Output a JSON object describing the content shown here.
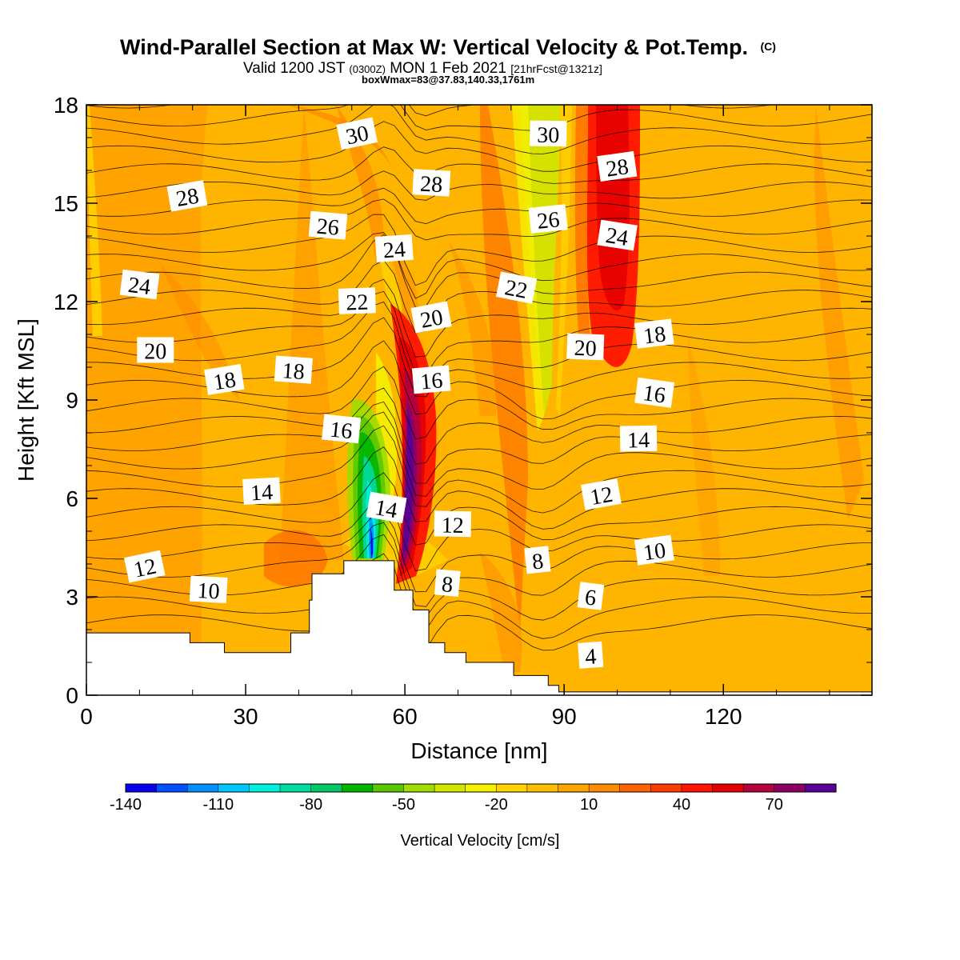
{
  "title": {
    "main": "Wind-Parallel Section at Max W: Vertical Velocity & Pot.Temp.",
    "main_suffix": "(C)",
    "valid_prefix": "Valid 1200 JST",
    "valid_utc": "(0300Z)",
    "valid_date": "MON 1 Feb 2021",
    "valid_fcst": "[21hrFcst@1321z]",
    "box": "boxWmax=83@37.83,140.33,1761m"
  },
  "chart_data": {
    "type": "heatmap",
    "xlabel": "Distance [nm]",
    "ylabel": "Height [Kft MSL]",
    "xlim": [
      0,
      148
    ],
    "ylim": [
      0,
      18
    ],
    "xticks": [
      0,
      30,
      60,
      90,
      120
    ],
    "yticks": [
      0,
      3,
      6,
      9,
      12,
      15,
      18
    ],
    "colorbar": {
      "label": "Vertical Velocity [cm/s]",
      "tick_labels": [
        "-140",
        "-110",
        "-80",
        "-50",
        "-20",
        "10",
        "40",
        "70"
      ],
      "colors": [
        "#0a00f0",
        "#0050ff",
        "#0090ff",
        "#00c8ff",
        "#00f0e0",
        "#00dca0",
        "#00c864",
        "#00b400",
        "#5ac800",
        "#a0dc00",
        "#d2e600",
        "#f5f000",
        "#ffd200",
        "#ffbe00",
        "#ffa500",
        "#ff8c00",
        "#ff6400",
        "#ff3c00",
        "#ff1400",
        "#e60000",
        "#b4003c",
        "#8c0064",
        "#5a0096"
      ]
    },
    "contour_labels": [
      {
        "text": "30",
        "x": 51,
        "y": 17.1
      },
      {
        "text": "30",
        "x": 87,
        "y": 17.1
      },
      {
        "text": "28",
        "x": 19,
        "y": 15.2
      },
      {
        "text": "28",
        "x": 65,
        "y": 15.6
      },
      {
        "text": "28",
        "x": 100,
        "y": 16.1
      },
      {
        "text": "26",
        "x": 45.5,
        "y": 14.3
      },
      {
        "text": "26",
        "x": 87,
        "y": 14.5
      },
      {
        "text": "24",
        "x": 10,
        "y": 12.5
      },
      {
        "text": "24",
        "x": 58,
        "y": 13.6
      },
      {
        "text": "24",
        "x": 100,
        "y": 14.0
      },
      {
        "text": "22",
        "x": 51,
        "y": 12.0
      },
      {
        "text": "22",
        "x": 81,
        "y": 12.4
      },
      {
        "text": "20",
        "x": 13,
        "y": 10.5
      },
      {
        "text": "20",
        "x": 65,
        "y": 11.5
      },
      {
        "text": "20",
        "x": 94,
        "y": 10.6
      },
      {
        "text": "18",
        "x": 26,
        "y": 9.6
      },
      {
        "text": "18",
        "x": 39,
        "y": 9.9
      },
      {
        "text": "18",
        "x": 107,
        "y": 11.0
      },
      {
        "text": "16",
        "x": 48,
        "y": 8.1
      },
      {
        "text": "16",
        "x": 65,
        "y": 9.6
      },
      {
        "text": "16",
        "x": 107,
        "y": 9.2
      },
      {
        "text": "14",
        "x": 33,
        "y": 6.2
      },
      {
        "text": "14",
        "x": 56.5,
        "y": 5.7
      },
      {
        "text": "14",
        "x": 104,
        "y": 7.8
      },
      {
        "text": "12",
        "x": 11,
        "y": 3.9
      },
      {
        "text": "12",
        "x": 69,
        "y": 5.2
      },
      {
        "text": "12",
        "x": 97,
        "y": 6.1
      },
      {
        "text": "10",
        "x": 23,
        "y": 3.2
      },
      {
        "text": "10",
        "x": 107,
        "y": 4.4
      },
      {
        "text": "8",
        "x": 68,
        "y": 3.4
      },
      {
        "text": "8",
        "x": 85,
        "y": 4.1
      },
      {
        "text": "6",
        "x": 95,
        "y": 3.0
      },
      {
        "text": "4",
        "x": 95,
        "y": 1.2
      }
    ]
  }
}
